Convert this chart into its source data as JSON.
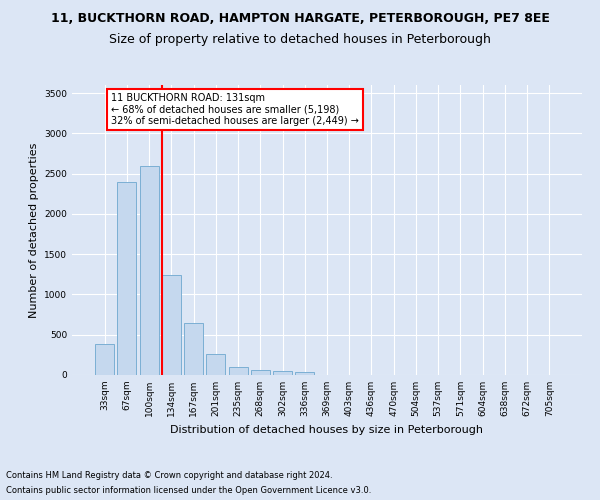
{
  "title1": "11, BUCKTHORN ROAD, HAMPTON HARGATE, PETERBOROUGH, PE7 8EE",
  "title2": "Size of property relative to detached houses in Peterborough",
  "xlabel": "Distribution of detached houses by size in Peterborough",
  "ylabel": "Number of detached properties",
  "footnote1": "Contains HM Land Registry data © Crown copyright and database right 2024.",
  "footnote2": "Contains public sector information licensed under the Open Government Licence v3.0.",
  "categories": [
    "33sqm",
    "67sqm",
    "100sqm",
    "134sqm",
    "167sqm",
    "201sqm",
    "235sqm",
    "268sqm",
    "302sqm",
    "336sqm",
    "369sqm",
    "403sqm",
    "436sqm",
    "470sqm",
    "504sqm",
    "537sqm",
    "571sqm",
    "604sqm",
    "638sqm",
    "672sqm",
    "705sqm"
  ],
  "values": [
    380,
    2400,
    2600,
    1240,
    640,
    260,
    95,
    60,
    55,
    40,
    0,
    0,
    0,
    0,
    0,
    0,
    0,
    0,
    0,
    0,
    0
  ],
  "bar_color": "#c5d8ee",
  "bar_edge_color": "#7bafd4",
  "vline_color": "red",
  "vline_x_index": 3,
  "annotation_title": "11 BUCKTHORN ROAD: 131sqm",
  "annotation_line2": "← 68% of detached houses are smaller (5,198)",
  "annotation_line3": "32% of semi-detached houses are larger (2,449) →",
  "annotation_box_color": "#ffffff",
  "annotation_box_edge": "red",
  "ylim": [
    0,
    3600
  ],
  "yticks": [
    0,
    500,
    1000,
    1500,
    2000,
    2500,
    3000,
    3500
  ],
  "background_color": "#dce6f5",
  "grid_color": "#ffffff",
  "title1_fontsize": 9,
  "title2_fontsize": 9,
  "xlabel_fontsize": 8,
  "ylabel_fontsize": 8,
  "footnote_fontsize": 6,
  "tick_fontsize": 6.5,
  "annot_fontsize": 7
}
